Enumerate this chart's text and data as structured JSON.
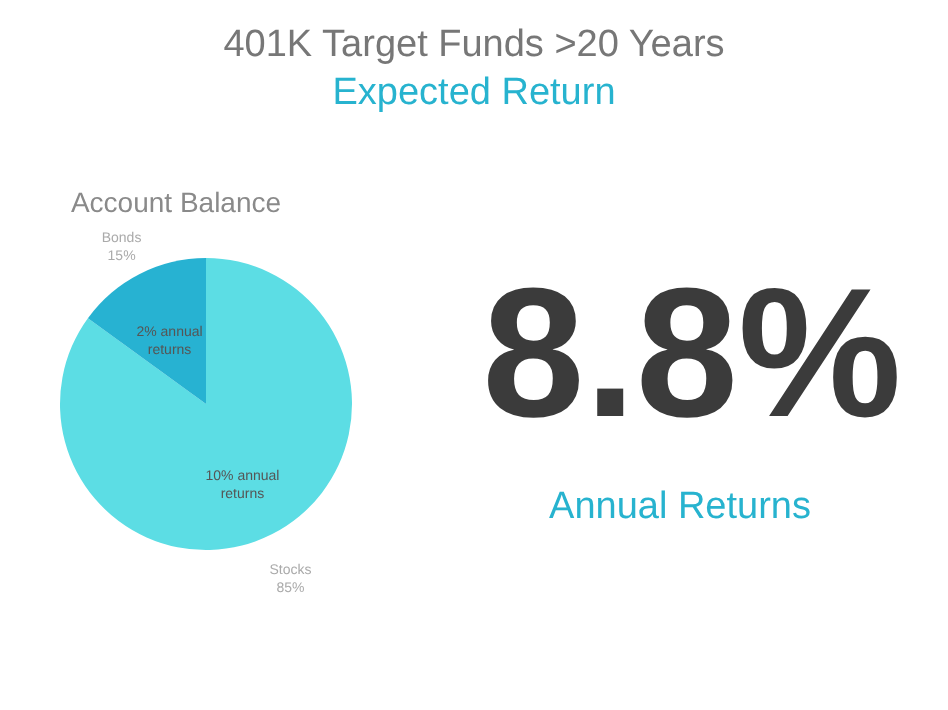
{
  "chart_data": {
    "type": "pie",
    "title": "401K Target Funds >20 Years",
    "subtitle": "Expected Return",
    "categories": [
      "Stocks",
      "Bonds"
    ],
    "values": [
      85,
      15
    ],
    "colors": [
      "#5cdde4",
      "#27b2d2"
    ],
    "value_labels": [
      "85%",
      "15%"
    ],
    "annotations": [
      "Account Balance",
      "8.8%",
      "Annual Returns",
      "10% annual returns",
      "2% annual returns"
    ]
  }
}
